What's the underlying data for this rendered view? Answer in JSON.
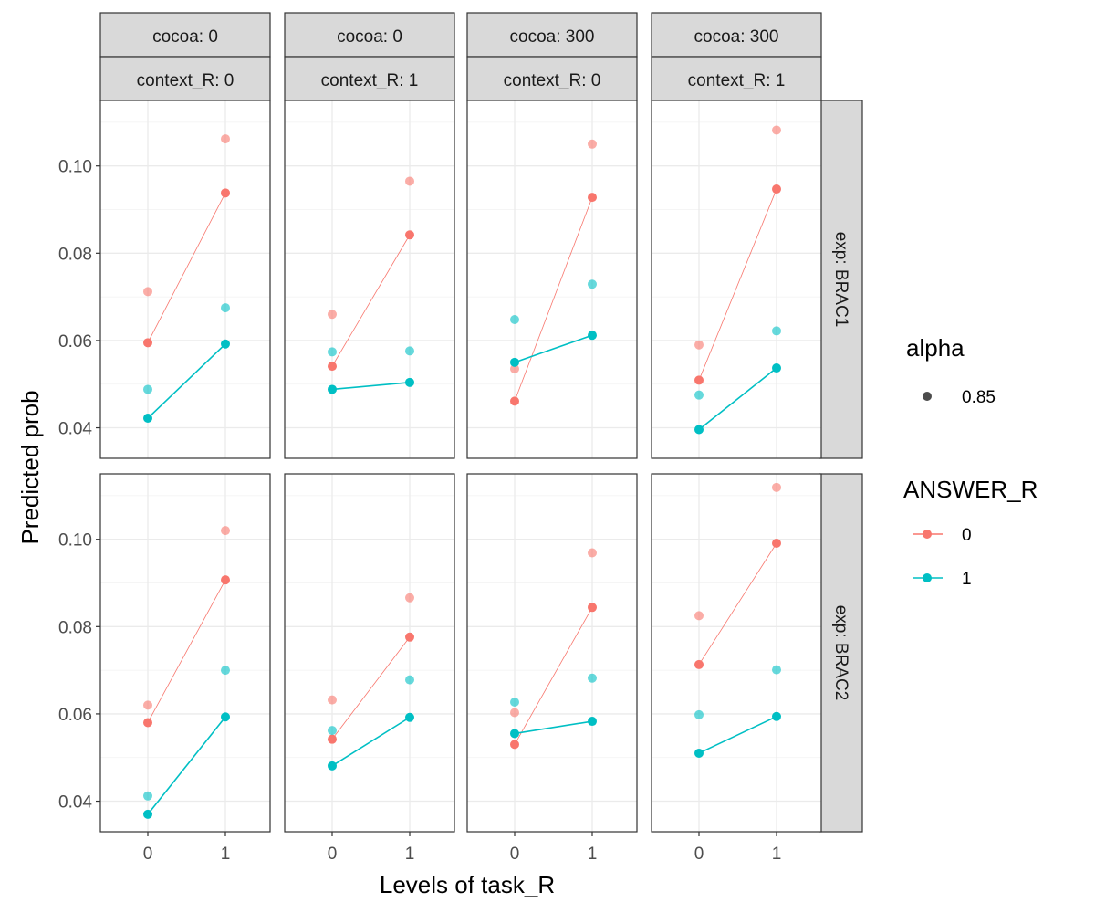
{
  "chart_data": {
    "type": "line",
    "xlabel": "Levels of task_R",
    "ylabel": "Predicted prob",
    "x_ticks": [
      "0",
      "1"
    ],
    "ylim": [
      0.033,
      0.115
    ],
    "y_ticks": [
      "0.04",
      "0.06",
      "0.08",
      "0.10"
    ],
    "grid": true,
    "legend_position": "right",
    "legend": {
      "alpha": {
        "title": "alpha",
        "value": "0.85"
      },
      "answer": {
        "title": "ANSWER_R",
        "items": [
          "0",
          "1"
        ]
      }
    },
    "colors": {
      "answer_0": "#F8766D",
      "answer_1": "#00BFC4"
    },
    "columns": [
      {
        "cocoa": "cocoa: 0",
        "context": "context_R: 0"
      },
      {
        "cocoa": "cocoa: 0",
        "context": "context_R: 1"
      },
      {
        "cocoa": "cocoa: 300",
        "context": "context_R: 0"
      },
      {
        "cocoa": "cocoa: 300",
        "context": "context_R: 1"
      }
    ],
    "rows": [
      "exp: BRAC1",
      "exp: BRAC2"
    ],
    "panels": [
      [
        {
          "series": [
            {
              "name": "0",
              "values": [
                0.0595,
                0.0938
              ],
              "upper": [
                0.0712,
                0.1062
              ]
            },
            {
              "name": "1",
              "values": [
                0.0422,
                0.0592
              ],
              "upper": [
                0.0488,
                0.0675
              ]
            }
          ]
        },
        {
          "series": [
            {
              "name": "0",
              "values": [
                0.0541,
                0.0842
              ],
              "upper": [
                0.066,
                0.0965
              ]
            },
            {
              "name": "1",
              "values": [
                0.0488,
                0.0504
              ],
              "upper": [
                0.0574,
                0.0576
              ]
            }
          ]
        },
        {
          "series": [
            {
              "name": "0",
              "values": [
                0.0461,
                0.0928
              ],
              "upper": [
                0.0535,
                0.105
              ]
            },
            {
              "name": "1",
              "values": [
                0.055,
                0.0612
              ],
              "upper": [
                0.0648,
                0.0729
              ]
            }
          ]
        },
        {
          "series": [
            {
              "name": "0",
              "values": [
                0.0509,
                0.0947
              ],
              "upper": [
                0.059,
                0.1082
              ]
            },
            {
              "name": "1",
              "values": [
                0.0396,
                0.0537
              ],
              "upper": [
                0.0475,
                0.0622
              ]
            }
          ]
        }
      ],
      [
        {
          "series": [
            {
              "name": "0",
              "values": [
                0.058,
                0.0907
              ],
              "upper": [
                0.062,
                0.102
              ]
            },
            {
              "name": "1",
              "values": [
                0.037,
                0.0593
              ],
              "upper": [
                0.0412,
                0.07
              ]
            }
          ]
        },
        {
          "series": [
            {
              "name": "0",
              "values": [
                0.0542,
                0.0776
              ],
              "upper": [
                0.0632,
                0.0866
              ]
            },
            {
              "name": "1",
              "values": [
                0.0481,
                0.0592
              ],
              "upper": [
                0.0562,
                0.0678
              ]
            }
          ]
        },
        {
          "series": [
            {
              "name": "0",
              "values": [
                0.053,
                0.0844
              ],
              "upper": [
                0.0603,
                0.0969
              ]
            },
            {
              "name": "1",
              "values": [
                0.0555,
                0.0583
              ],
              "upper": [
                0.0627,
                0.0682
              ]
            }
          ]
        },
        {
          "series": [
            {
              "name": "0",
              "values": [
                0.0713,
                0.0991
              ],
              "upper": [
                0.0825,
                0.1119
              ]
            },
            {
              "name": "1",
              "values": [
                0.051,
                0.0594
              ],
              "upper": [
                0.0598,
                0.0701
              ]
            }
          ]
        }
      ]
    ]
  }
}
